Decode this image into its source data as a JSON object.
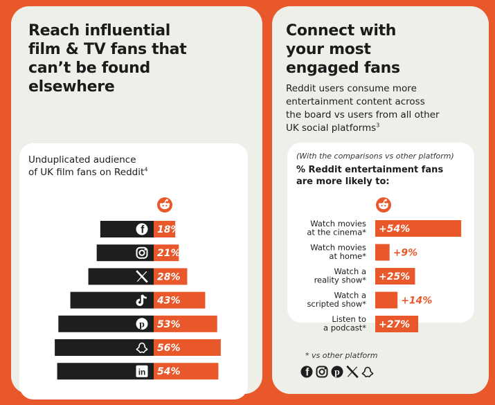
{
  "left": {
    "headline": [
      "Reach influential",
      "film & TV fans that",
      "can’t be found",
      "elsewhere"
    ],
    "card_title_line1": "Unduplicated audience",
    "card_title_line2": "of UK film fans on Reddit",
    "card_title_sup": "4"
  },
  "right": {
    "headline": [
      "Connect with",
      "your most",
      "engaged fans"
    ],
    "intro_lines": [
      "Reddit users consume more",
      "entertainment content across",
      "the board vs users from all other",
      "UK social platforms"
    ],
    "intro_sup": "3",
    "card_note": "(With the comparisons vs other platform)",
    "card_title_line1": "% Reddit entertainment fans",
    "card_title_line2": "are more likely to:",
    "footnote": "* vs other platform",
    "footnote_icons": [
      "facebook-icon",
      "instagram-icon",
      "pinterest-icon",
      "x-icon",
      "snapchat-icon"
    ]
  },
  "colors": {
    "orange": "#e8582a",
    "dark": "#1e1e1e",
    "panel": "#efefea",
    "card": "#ffffff"
  },
  "chart_data": [
    {
      "type": "bar",
      "orientation": "horizontal",
      "title": "Unduplicated audience of UK film fans on Reddit",
      "categories": [
        "facebook-icon",
        "instagram-icon",
        "x-icon",
        "tiktok-icon",
        "pinterest-icon",
        "snapchat-icon",
        "linkedin-icon"
      ],
      "value_labels": [
        "18%",
        "21%",
        "28%",
        "43%",
        "53%",
        "56%",
        "54%"
      ],
      "values": [
        18,
        21,
        28,
        43,
        53,
        56,
        54
      ],
      "header_icon": "reddit-icon"
    },
    {
      "type": "bar",
      "orientation": "horizontal",
      "title": "% Reddit entertainment fans are more likely to:",
      "categories": [
        [
          "Watch movies",
          "at the cinema*"
        ],
        [
          "Watch movies",
          "at home*"
        ],
        [
          "Watch a",
          "reality show*"
        ],
        [
          "Watch a",
          "scripted show*"
        ],
        [
          "Listen to",
          "a podcast*"
        ]
      ],
      "value_labels": [
        "+54%",
        "+9%",
        "+25%",
        "+14%",
        "+27%"
      ],
      "values": [
        54,
        9,
        25,
        14,
        27
      ],
      "header_icon": "reddit-icon"
    }
  ]
}
